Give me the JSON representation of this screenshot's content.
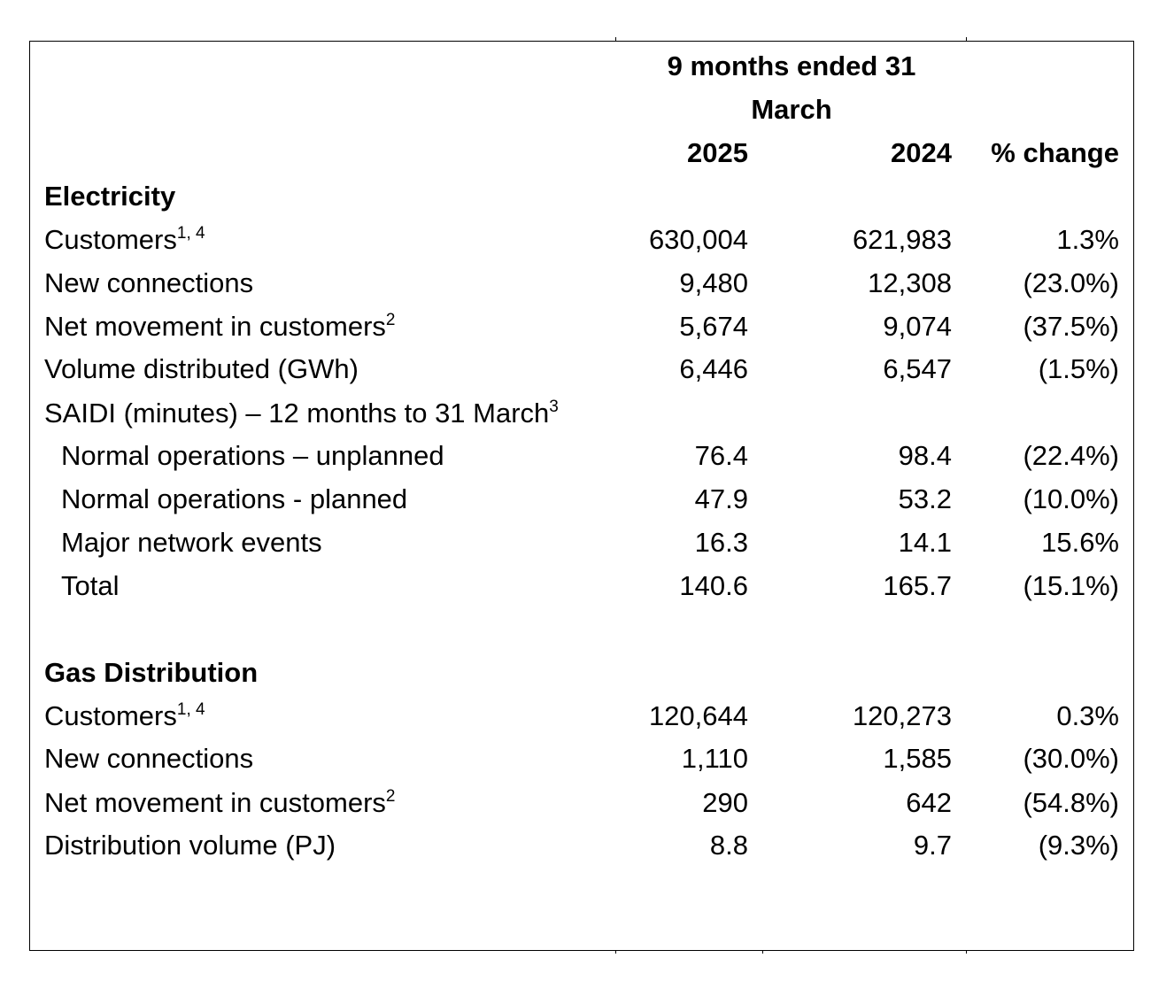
{
  "header": {
    "period_line1": "9 months ended 31",
    "period_line2": "March",
    "col_2025": "2025",
    "col_2024": "2024",
    "col_change": "% change"
  },
  "electricity": {
    "section_title": "Electricity",
    "rows": [
      {
        "label": "Customers",
        "sup": "1, 4",
        "v2025": "630,004",
        "v2024": "621,983",
        "change": "1.3%"
      },
      {
        "label": "New connections",
        "sup": "",
        "v2025": "9,480",
        "v2024": "12,308",
        "change": "(23.0%)"
      },
      {
        "label": "Net movement in customers",
        "sup": "2",
        "v2025": "5,674",
        "v2024": "9,074",
        "change": "(37.5%)"
      },
      {
        "label": "Volume distributed (GWh)",
        "sup": "",
        "v2025": "6,446",
        "v2024": "6,547",
        "change": "(1.5%)"
      }
    ],
    "saidi_label": "SAIDI (minutes) – 12 months to 31 March",
    "saidi_sup": "3",
    "saidi_rows": [
      {
        "label": "Normal operations – unplanned",
        "v2025": "76.4",
        "v2024": "98.4",
        "change": "(22.4%)"
      },
      {
        "label": "Normal operations - planned",
        "v2025": "47.9",
        "v2024": "53.2",
        "change": "(10.0%)"
      },
      {
        "label": "Major network events",
        "v2025": "16.3",
        "v2024": "14.1",
        "change": "15.6%"
      },
      {
        "label": "Total",
        "v2025": "140.6",
        "v2024": "165.7",
        "change": "(15.1%)"
      }
    ]
  },
  "gas": {
    "section_title": "Gas Distribution",
    "rows": [
      {
        "label": "Customers",
        "sup": "1, 4",
        "v2025": "120,644",
        "v2024": "120,273",
        "change": "0.3%"
      },
      {
        "label": "New connections",
        "sup": "",
        "v2025": "1,110",
        "v2024": "1,585",
        "change": "(30.0%)"
      },
      {
        "label": "Net movement in customers",
        "sup": "2",
        "v2025": "290",
        "v2024": "642",
        "change": "(54.8%)"
      },
      {
        "label": "Distribution volume (PJ)",
        "sup": "",
        "v2025": "8.8",
        "v2024": "9.7",
        "change": "(9.3%)"
      }
    ]
  }
}
